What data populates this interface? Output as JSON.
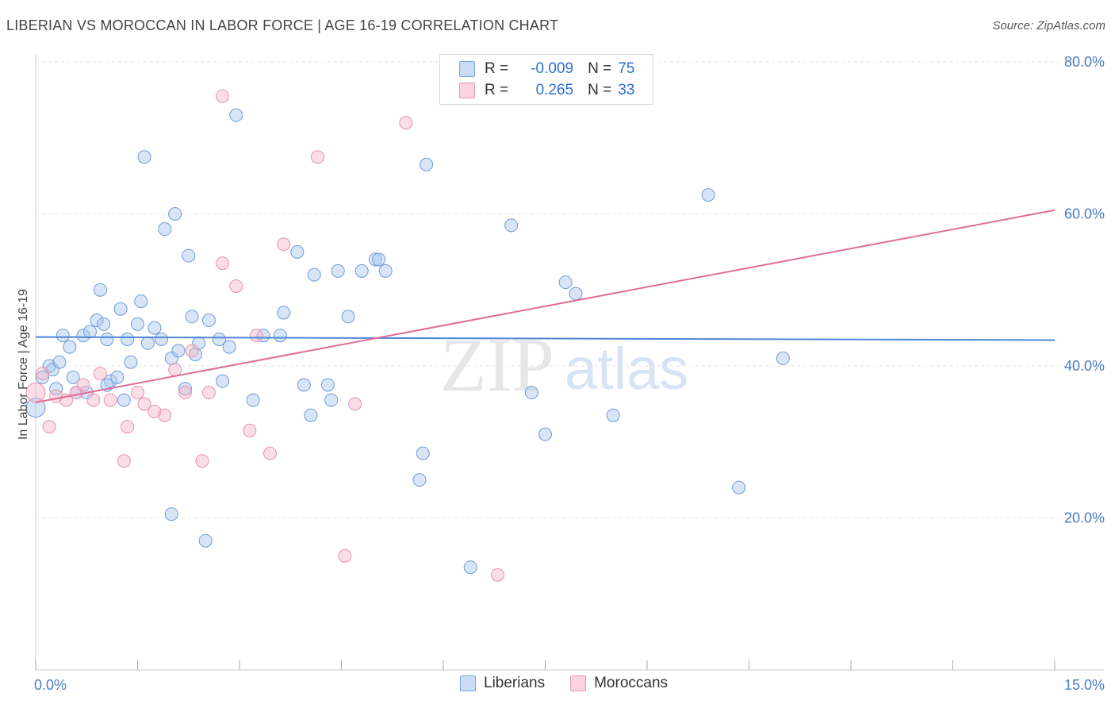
{
  "header": {
    "title": "LIBERIAN VS MOROCCAN IN LABOR FORCE | AGE 16-19 CORRELATION CHART",
    "source": "Source: ZipAtlas.com"
  },
  "watermark": {
    "zip": "ZIP",
    "atlas": "atlas"
  },
  "legend": {
    "rows": [
      {
        "r_label": "R =",
        "r_value": "-0.009",
        "n_label": "N =",
        "n_value": "75",
        "color": "#a9c6ee"
      },
      {
        "r_label": "R =",
        "r_value": "0.265",
        "n_label": "N =",
        "n_value": "33",
        "color": "#f5b6c8"
      }
    ]
  },
  "bottom_legend": [
    {
      "label": "Liberians",
      "color": "#a9c6ee"
    },
    {
      "label": "Moroccans",
      "color": "#f5b6c8"
    }
  ],
  "chart_data": {
    "type": "scatter",
    "title": "LIBERIAN VS MOROCCAN IN LABOR FORCE | AGE 16-19 CORRELATION CHART",
    "xlabel": "",
    "ylabel": "In Labor Force | Age 16-19",
    "xlim": [
      0,
      15
    ],
    "ylim": [
      0,
      80
    ],
    "x_tick_labels": [
      "0.0%",
      "15.0%"
    ],
    "y_ticks": [
      20,
      40,
      60,
      80
    ],
    "y_tick_labels": [
      "20.0%",
      "40.0%",
      "60.0%",
      "80.0%"
    ],
    "colors": {
      "Liberians": "#4f86d6",
      "Moroccans": "#e06c98"
    },
    "series": [
      {
        "name": "Liberians",
        "trend": {
          "x": [
            0,
            15
          ],
          "y": [
            43.8,
            43.4
          ]
        },
        "points": [
          [
            0.0,
            34.5
          ],
          [
            0.1,
            38.5
          ],
          [
            0.2,
            40.0
          ],
          [
            0.25,
            39.5
          ],
          [
            0.3,
            37.0
          ],
          [
            0.35,
            40.5
          ],
          [
            0.4,
            44.0
          ],
          [
            0.5,
            42.5
          ],
          [
            0.55,
            38.5
          ],
          [
            0.6,
            36.5
          ],
          [
            0.7,
            44.0
          ],
          [
            0.75,
            36.5
          ],
          [
            0.8,
            44.5
          ],
          [
            0.9,
            46.0
          ],
          [
            0.95,
            50.0
          ],
          [
            1.0,
            45.5
          ],
          [
            1.05,
            43.5
          ],
          [
            1.1,
            38.0
          ],
          [
            1.2,
            38.5
          ],
          [
            1.25,
            47.5
          ],
          [
            1.3,
            35.5
          ],
          [
            1.35,
            43.5
          ],
          [
            1.4,
            40.5
          ],
          [
            1.5,
            45.5
          ],
          [
            1.55,
            48.5
          ],
          [
            1.6,
            67.5
          ],
          [
            1.65,
            43.0
          ],
          [
            1.75,
            45.0
          ],
          [
            1.85,
            43.5
          ],
          [
            1.9,
            58.0
          ],
          [
            2.0,
            41.0
          ],
          [
            2.05,
            60.0
          ],
          [
            2.1,
            42.0
          ],
          [
            2.25,
            54.5
          ],
          [
            2.3,
            46.5
          ],
          [
            2.35,
            41.5
          ],
          [
            2.4,
            43.0
          ],
          [
            2.5,
            17.0
          ],
          [
            2.55,
            46.0
          ],
          [
            2.7,
            43.5
          ],
          [
            2.75,
            38.0
          ],
          [
            2.85,
            42.5
          ],
          [
            2.95,
            73.0
          ],
          [
            3.2,
            35.5
          ],
          [
            3.35,
            44.0
          ],
          [
            3.6,
            44.0
          ],
          [
            3.65,
            47.0
          ],
          [
            3.85,
            55.0
          ],
          [
            3.95,
            37.5
          ],
          [
            4.05,
            33.5
          ],
          [
            4.1,
            52.0
          ],
          [
            4.3,
            37.5
          ],
          [
            4.35,
            35.5
          ],
          [
            4.45,
            52.5
          ],
          [
            4.6,
            46.5
          ],
          [
            4.8,
            52.5
          ],
          [
            5.0,
            54.0
          ],
          [
            5.05,
            54.0
          ],
          [
            5.15,
            52.5
          ],
          [
            5.65,
            25.0
          ],
          [
            5.7,
            28.5
          ],
          [
            5.75,
            66.5
          ],
          [
            6.4,
            13.5
          ],
          [
            7.0,
            58.5
          ],
          [
            7.3,
            36.5
          ],
          [
            7.5,
            31.0
          ],
          [
            7.8,
            51.0
          ],
          [
            7.95,
            49.5
          ],
          [
            8.5,
            33.5
          ],
          [
            9.9,
            62.5
          ],
          [
            10.35,
            24.0
          ],
          [
            11.0,
            41.0
          ],
          [
            1.05,
            37.5
          ],
          [
            2.2,
            37.0
          ],
          [
            2.0,
            20.5
          ]
        ]
      },
      {
        "name": "Moroccans",
        "trend": {
          "x": [
            0,
            15
          ],
          "y": [
            35.2,
            60.5
          ]
        },
        "points": [
          [
            0.0,
            36.5
          ],
          [
            0.1,
            39.0
          ],
          [
            0.2,
            32.0
          ],
          [
            0.3,
            36.0
          ],
          [
            0.45,
            35.5
          ],
          [
            0.6,
            36.5
          ],
          [
            0.7,
            37.5
          ],
          [
            0.85,
            35.5
          ],
          [
            0.95,
            39.0
          ],
          [
            1.1,
            35.5
          ],
          [
            1.3,
            27.5
          ],
          [
            1.35,
            32.0
          ],
          [
            1.5,
            36.5
          ],
          [
            1.6,
            35.0
          ],
          [
            1.75,
            34.0
          ],
          [
            1.9,
            33.5
          ],
          [
            2.05,
            39.5
          ],
          [
            2.2,
            36.5
          ],
          [
            2.3,
            42.0
          ],
          [
            2.45,
            27.5
          ],
          [
            2.55,
            36.5
          ],
          [
            2.75,
            75.5
          ],
          [
            2.95,
            50.5
          ],
          [
            2.75,
            53.5
          ],
          [
            3.15,
            31.5
          ],
          [
            3.25,
            44.0
          ],
          [
            3.45,
            28.5
          ],
          [
            3.65,
            56.0
          ],
          [
            4.15,
            67.5
          ],
          [
            4.55,
            15.0
          ],
          [
            4.7,
            35.0
          ],
          [
            5.45,
            72.0
          ],
          [
            6.8,
            12.5
          ]
        ]
      }
    ]
  }
}
